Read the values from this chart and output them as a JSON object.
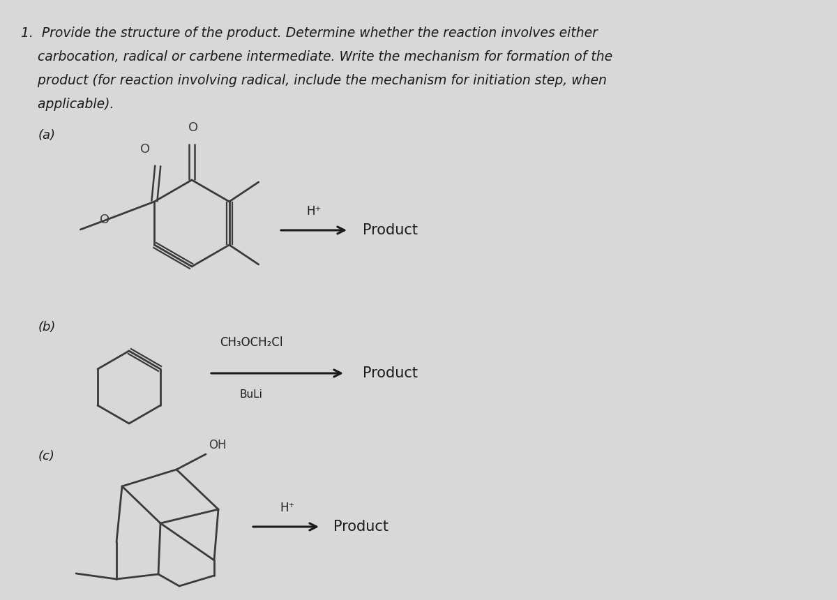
{
  "bg_color": "#d8d8d8",
  "title_line1": "1.  Provide the structure of the product. Determine whether the reaction involves either",
  "title_line2": "    carbocation, radical or carbene intermediate. Write the mechanism for formation of the",
  "title_line3": "    product (for reaction involving radical, include the mechanism for initiation step, when",
  "title_line4": "    applicable).",
  "label_a": "(a)",
  "label_b": "(b)",
  "label_c": "(c)",
  "reagent_a": "H⁺",
  "product_a": "Product",
  "reagent_b_top": "CH₃OCH₂Cl",
  "reagent_b_bottom": "BuLi",
  "product_b": "Product",
  "reagent_c": "H⁺",
  "product_c": "Product",
  "text_color": "#1a1a1a",
  "structure_color": "#3a3a3a",
  "arrow_color": "#1a1a1a"
}
